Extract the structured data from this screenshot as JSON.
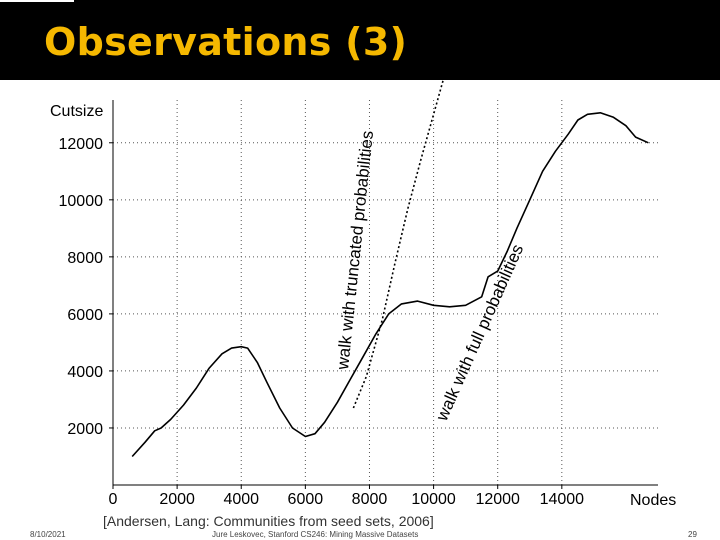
{
  "slide": {
    "title": "Observations (3)",
    "citation": "[Andersen, Lang: Communities from seed sets, 2006]",
    "footer_date": "8/10/2021",
    "footer_course": "Jure Leskovec, Stanford CS246: Mining Massive Datasets",
    "footer_page": "29"
  },
  "chart_data": {
    "type": "line",
    "xlabel": "Nodes",
    "ylabel": "Cutsize",
    "xlim": [
      0,
      17000
    ],
    "ylim": [
      0,
      13500
    ],
    "x_ticks": [
      "0",
      "2000",
      "4000",
      "6000",
      "8000",
      "10000",
      "12000",
      "14000"
    ],
    "y_ticks": [
      "2000",
      "4000",
      "6000",
      "8000",
      "10000",
      "12000"
    ],
    "grid": "dotted horizontal",
    "annotations": [
      "walk with truncated probabilities",
      "walk with full probabilities"
    ],
    "series": [
      {
        "style": "solid",
        "x": [
          600,
          1000,
          1300,
          1500,
          1800,
          2200,
          2600,
          3000,
          3400,
          3700,
          4000,
          4200,
          4500,
          4800,
          5200,
          5600,
          6000,
          6300,
          6600,
          7000,
          7400,
          7800,
          8200,
          8600,
          9000,
          9500,
          10000,
          10500,
          11000,
          11500,
          11700,
          12000,
          12300,
          12600,
          13000,
          13400,
          13800,
          14200,
          14500,
          14800,
          15200,
          15600,
          16000,
          16300,
          16700
        ],
        "y": [
          1000,
          1500,
          1900,
          2000,
          2300,
          2800,
          3400,
          4100,
          4600,
          4800,
          4850,
          4800,
          4300,
          3600,
          2700,
          2000,
          1700,
          1800,
          2200,
          2900,
          3700,
          4500,
          5300,
          6000,
          6350,
          6450,
          6300,
          6250,
          6300,
          6600,
          7300,
          7500,
          8200,
          9000,
          10000,
          11000,
          11700,
          12300,
          12800,
          13000,
          13050,
          12900,
          12600,
          12200,
          12000
        ]
      },
      {
        "style": "dotted",
        "x": [
          7500,
          7900,
          8400,
          8800,
          9200,
          9600,
          10000,
          10300
        ],
        "y": [
          2700,
          3800,
          5800,
          7800,
          9700,
          11400,
          13000,
          14200
        ]
      }
    ]
  }
}
